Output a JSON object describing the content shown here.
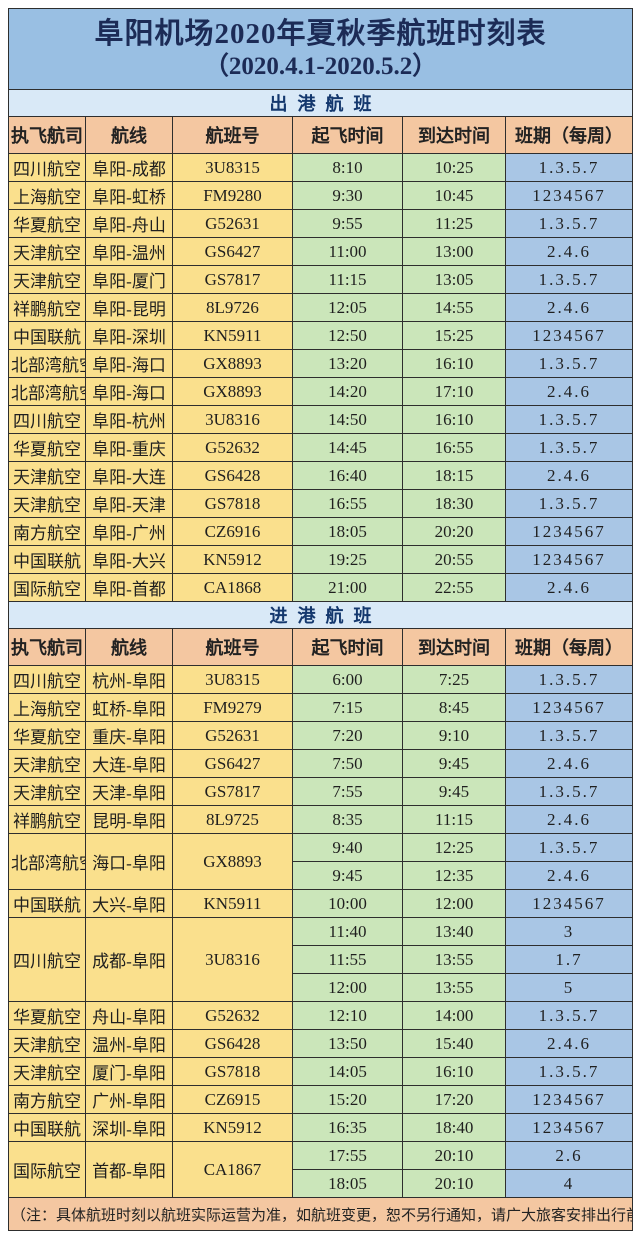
{
  "title": {
    "line1": "阜阳机场2020年夏秋季航班时刻表",
    "line2": "（2020.4.1-2020.5.2）"
  },
  "columns": [
    "执飞航司",
    "航线",
    "航班号",
    "起飞时间",
    "到达时间",
    "班期（每周）"
  ],
  "sections": [
    {
      "name": "出港航班",
      "groups": [
        {
          "airline": "四川航空",
          "route": "阜阳-成都",
          "flight_no": "3U8315",
          "times": [
            {
              "dep": "8:10",
              "arr": "10:25",
              "days": "1.3.5.7"
            }
          ]
        },
        {
          "airline": "上海航空",
          "route": "阜阳-虹桥",
          "flight_no": "FM9280",
          "times": [
            {
              "dep": "9:30",
              "arr": "10:45",
              "days": "1234567"
            }
          ]
        },
        {
          "airline": "华夏航空",
          "route": "阜阳-舟山",
          "flight_no": "G52631",
          "times": [
            {
              "dep": "9:55",
              "arr": "11:25",
              "days": "1.3.5.7"
            }
          ]
        },
        {
          "airline": "天津航空",
          "route": "阜阳-温州",
          "flight_no": "GS6427",
          "times": [
            {
              "dep": "11:00",
              "arr": "13:00",
              "days": "2.4.6"
            }
          ]
        },
        {
          "airline": "天津航空",
          "route": "阜阳-厦门",
          "flight_no": "GS7817",
          "times": [
            {
              "dep": "11:15",
              "arr": "13:05",
              "days": "1.3.5.7"
            }
          ]
        },
        {
          "airline": "祥鹏航空",
          "route": "阜阳-昆明",
          "flight_no": "8L9726",
          "times": [
            {
              "dep": "12:05",
              "arr": "14:55",
              "days": "2.4.6"
            }
          ]
        },
        {
          "airline": "中国联航",
          "route": "阜阳-深圳",
          "flight_no": "KN5911",
          "times": [
            {
              "dep": "12:50",
              "arr": "15:25",
              "days": "1234567"
            }
          ]
        },
        {
          "airline": "北部湾航空",
          "route": "阜阳-海口",
          "flight_no": "GX8893",
          "times": [
            {
              "dep": "13:20",
              "arr": "16:10",
              "days": "1.3.5.7"
            }
          ]
        },
        {
          "airline": "北部湾航空",
          "route": "阜阳-海口",
          "flight_no": "GX8893",
          "times": [
            {
              "dep": "14:20",
              "arr": "17:10",
              "days": "2.4.6"
            }
          ]
        },
        {
          "airline": "四川航空",
          "route": "阜阳-杭州",
          "flight_no": "3U8316",
          "times": [
            {
              "dep": "14:50",
              "arr": "16:10",
              "days": "1.3.5.7"
            }
          ]
        },
        {
          "airline": "华夏航空",
          "route": "阜阳-重庆",
          "flight_no": "G52632",
          "times": [
            {
              "dep": "14:45",
              "arr": "16:55",
              "days": "1.3.5.7"
            }
          ]
        },
        {
          "airline": "天津航空",
          "route": "阜阳-大连",
          "flight_no": "GS6428",
          "times": [
            {
              "dep": "16:40",
              "arr": "18:15",
              "days": "2.4.6"
            }
          ]
        },
        {
          "airline": "天津航空",
          "route": "阜阳-天津",
          "flight_no": "GS7818",
          "times": [
            {
              "dep": "16:55",
              "arr": "18:30",
              "days": "1.3.5.7"
            }
          ]
        },
        {
          "airline": "南方航空",
          "route": "阜阳-广州",
          "flight_no": "CZ6916",
          "times": [
            {
              "dep": "18:05",
              "arr": "20:20",
              "days": "1234567"
            }
          ]
        },
        {
          "airline": "中国联航",
          "route": "阜阳-大兴",
          "flight_no": "KN5912",
          "times": [
            {
              "dep": "19:25",
              "arr": "20:55",
              "days": "1234567"
            }
          ]
        },
        {
          "airline": "国际航空",
          "route": "阜阳-首都",
          "flight_no": "CA1868",
          "times": [
            {
              "dep": "21:00",
              "arr": "22:55",
              "days": "2.4.6"
            }
          ]
        }
      ]
    },
    {
      "name": "进港航班",
      "groups": [
        {
          "airline": "四川航空",
          "route": "杭州-阜阳",
          "flight_no": "3U8315",
          "times": [
            {
              "dep": "6:00",
              "arr": "7:25",
              "days": "1.3.5.7"
            }
          ]
        },
        {
          "airline": "上海航空",
          "route": "虹桥-阜阳",
          "flight_no": "FM9279",
          "times": [
            {
              "dep": "7:15",
              "arr": "8:45",
              "days": "1234567"
            }
          ]
        },
        {
          "airline": "华夏航空",
          "route": "重庆-阜阳",
          "flight_no": "G52631",
          "times": [
            {
              "dep": "7:20",
              "arr": "9:10",
              "days": "1.3.5.7"
            }
          ]
        },
        {
          "airline": "天津航空",
          "route": "大连-阜阳",
          "flight_no": "GS6427",
          "times": [
            {
              "dep": "7:50",
              "arr": "9:45",
              "days": "2.4.6"
            }
          ]
        },
        {
          "airline": "天津航空",
          "route": "天津-阜阳",
          "flight_no": "GS7817",
          "times": [
            {
              "dep": "7:55",
              "arr": "9:45",
              "days": "1.3.5.7"
            }
          ]
        },
        {
          "airline": "祥鹏航空",
          "route": "昆明-阜阳",
          "flight_no": "8L9725",
          "times": [
            {
              "dep": "8:35",
              "arr": "11:15",
              "days": "2.4.6"
            }
          ]
        },
        {
          "airline": "北部湾航空",
          "route": "海口-阜阳",
          "flight_no": "GX8893",
          "times": [
            {
              "dep": "9:40",
              "arr": "12:25",
              "days": "1.3.5.7"
            },
            {
              "dep": "9:45",
              "arr": "12:35",
              "days": "2.4.6"
            }
          ]
        },
        {
          "airline": "中国联航",
          "route": "大兴-阜阳",
          "flight_no": "KN5911",
          "times": [
            {
              "dep": "10:00",
              "arr": "12:00",
              "days": "1234567"
            }
          ]
        },
        {
          "airline": "四川航空",
          "route": "成都-阜阳",
          "flight_no": "3U8316",
          "times": [
            {
              "dep": "11:40",
              "arr": "13:40",
              "days": "3"
            },
            {
              "dep": "11:55",
              "arr": "13:55",
              "days": "1.7"
            },
            {
              "dep": "12:00",
              "arr": "13:55",
              "days": "5"
            }
          ]
        },
        {
          "airline": "华夏航空",
          "route": "舟山-阜阳",
          "flight_no": "G52632",
          "times": [
            {
              "dep": "12:10",
              "arr": "14:00",
              "days": "1.3.5.7"
            }
          ]
        },
        {
          "airline": "天津航空",
          "route": "温州-阜阳",
          "flight_no": "GS6428",
          "times": [
            {
              "dep": "13:50",
              "arr": "15:40",
              "days": "2.4.6"
            }
          ]
        },
        {
          "airline": "天津航空",
          "route": "厦门-阜阳",
          "flight_no": "GS7818",
          "times": [
            {
              "dep": "14:05",
              "arr": "16:10",
              "days": "1.3.5.7"
            }
          ]
        },
        {
          "airline": "南方航空",
          "route": "广州-阜阳",
          "flight_no": "CZ6915",
          "times": [
            {
              "dep": "15:20",
              "arr": "17:20",
              "days": "1234567"
            }
          ]
        },
        {
          "airline": "中国联航",
          "route": "深圳-阜阳",
          "flight_no": "KN5912",
          "times": [
            {
              "dep": "16:35",
              "arr": "18:40",
              "days": "1234567"
            }
          ]
        },
        {
          "airline": "国际航空",
          "route": "首都-阜阳",
          "flight_no": "CA1867",
          "times": [
            {
              "dep": "17:55",
              "arr": "20:10",
              "days": "2.6"
            },
            {
              "dep": "18:05",
              "arr": "20:10",
              "days": "4"
            }
          ]
        }
      ]
    }
  ],
  "footnote": "（注：具体航班时刻以航班实际运营为准，如航班变更，恕不另行通知，请广大旅客安排出行前查询）",
  "colors": {
    "title_bg": "#99bfe3",
    "title_text": "#1c2b56",
    "section_bg": "#d9e9f7",
    "section_text": "#14386e",
    "header_bg": "#f4c7a1",
    "cell_yellow": "#fae08d",
    "cell_green": "#cbe6ba",
    "cell_blue": "#a9c6e5",
    "note_bg": "#f4c7a1",
    "border": "#2e2e2e"
  }
}
